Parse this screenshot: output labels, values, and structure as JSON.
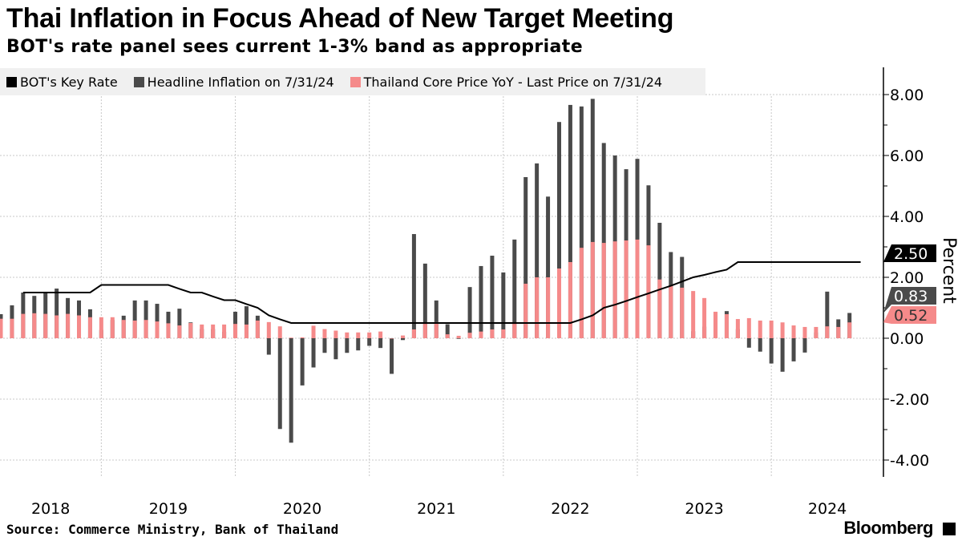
{
  "title": "Thai Inflation in Focus Ahead of New Target Meeting",
  "subtitle": "BOT's rate panel sees current 1-3% band as appropriate",
  "source": "Source: Commerce Ministry, Bank of Thailand",
  "brand": "Bloomberg",
  "chart_data": {
    "type": "bar",
    "ylabel": "Percent",
    "ylim": [
      -4.6,
      9.0
    ],
    "yticks": [
      "8.00",
      "6.00",
      "4.00",
      "2.00",
      "0.00",
      "-2.00",
      "-4.00"
    ],
    "ytick_values": [
      8,
      6,
      4,
      2,
      0,
      -2,
      -4
    ],
    "y_axis_side": "right",
    "grid": true,
    "legend_placement": "top-left",
    "xtick_labels": [
      "2018",
      "2019",
      "2020",
      "2021",
      "2022",
      "2023",
      "2024"
    ],
    "colors": {
      "rate": "#000000",
      "headline": "#4a4a4a",
      "core": "#f58a8a"
    },
    "x_start": "2018-03",
    "x_end": "2024-07",
    "series": [
      {
        "name": "BOT's Key Rate",
        "type": "line",
        "last_value_label": "2.50",
        "values": [
          null,
          null,
          1.5,
          1.5,
          1.5,
          1.5,
          1.5,
          1.5,
          1.5,
          1.75,
          1.75,
          1.75,
          1.75,
          1.75,
          1.75,
          1.75,
          1.62,
          1.5,
          1.5,
          1.37,
          1.25,
          1.25,
          1.12,
          1.0,
          0.75,
          0.62,
          0.5,
          0.5,
          0.5,
          0.5,
          0.5,
          0.5,
          0.5,
          0.5,
          0.5,
          0.5,
          0.5,
          0.5,
          0.5,
          0.5,
          0.5,
          0.5,
          0.5,
          0.5,
          0.5,
          0.5,
          0.5,
          0.5,
          0.5,
          0.5,
          0.5,
          0.5,
          0.62,
          0.75,
          1.0,
          1.1,
          1.22,
          1.35,
          1.47,
          1.6,
          1.72,
          1.86,
          2.0,
          2.08,
          2.17,
          2.25,
          2.5,
          2.5,
          2.5,
          2.5,
          2.5,
          2.5,
          2.5,
          2.5,
          2.5,
          2.5,
          2.5
        ]
      },
      {
        "name": "Headline Inflation on 7/31/24",
        "type": "bar",
        "last_value_label": "0.83",
        "values": [
          0.79,
          1.08,
          1.5,
          1.39,
          1.48,
          1.63,
          1.32,
          1.24,
          0.95,
          0.27,
          0.6,
          0.74,
          1.24,
          1.24,
          1.13,
          0.87,
          0.97,
          0.52,
          0.3,
          0.3,
          0.21,
          0.87,
          1.05,
          0.74,
          -0.54,
          -2.98,
          -3.43,
          -1.55,
          -0.96,
          -0.48,
          -0.69,
          -0.48,
          -0.4,
          -0.25,
          -0.32,
          -1.17,
          -0.06,
          3.42,
          2.45,
          1.24,
          0.46,
          -0.02,
          1.68,
          2.37,
          2.71,
          2.16,
          3.24,
          5.29,
          5.74,
          4.65,
          7.1,
          7.66,
          7.61,
          7.86,
          6.41,
          6.0,
          5.55,
          5.89,
          5.02,
          3.79,
          2.83,
          2.67,
          0.23,
          0.38,
          0.85,
          0.89,
          0.3,
          -0.31,
          -0.44,
          -0.83,
          -1.1,
          -0.76,
          -0.47,
          0.19,
          1.53,
          0.62,
          0.83
        ]
      },
      {
        "name": "Thailand Core Price YoY - Last Price on 7/31/24",
        "type": "bar",
        "last_value_label": "0.52",
        "values": [
          0.64,
          0.64,
          0.8,
          0.82,
          0.8,
          0.75,
          0.8,
          0.75,
          0.69,
          0.69,
          0.69,
          0.6,
          0.58,
          0.6,
          0.55,
          0.49,
          0.42,
          0.5,
          0.45,
          0.45,
          0.45,
          0.47,
          0.45,
          0.58,
          0.53,
          0.39,
          0.02,
          0.03,
          0.41,
          0.3,
          0.25,
          0.19,
          0.19,
          0.19,
          0.22,
          0.0,
          0.09,
          0.29,
          0.47,
          0.53,
          0.13,
          0.08,
          0.18,
          0.22,
          0.29,
          0.29,
          0.47,
          1.79,
          2.0,
          2.0,
          2.29,
          2.5,
          2.97,
          3.16,
          3.13,
          3.18,
          3.21,
          3.24,
          3.05,
          1.93,
          1.71,
          1.66,
          1.55,
          1.32,
          0.87,
          0.79,
          0.63,
          0.66,
          0.58,
          0.58,
          0.52,
          0.42,
          0.37,
          0.37,
          0.39,
          0.37,
          0.52
        ]
      }
    ]
  }
}
